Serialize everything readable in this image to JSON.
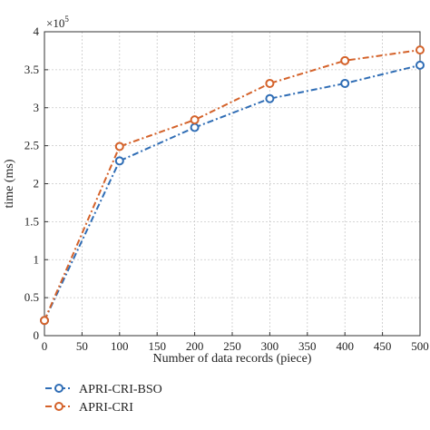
{
  "chart_data": {
    "type": "line",
    "xlabel": "Number of data records (piece)",
    "ylabel": "time (ms)",
    "y_multiplier": {
      "base": "×10",
      "exponent": "5"
    },
    "xlim": [
      0,
      500
    ],
    "ylim": [
      0,
      4
    ],
    "x_ticks": [
      0,
      50,
      100,
      150,
      200,
      250,
      300,
      350,
      400,
      450,
      500
    ],
    "y_ticks": [
      0,
      0.5,
      1,
      1.5,
      2,
      2.5,
      3,
      3.5,
      4
    ],
    "x_tick_labels": [
      "0",
      "50",
      "100",
      "150",
      "200",
      "250",
      "300",
      "350",
      "400",
      "450",
      "500"
    ],
    "y_tick_labels": [
      "0",
      "0.5",
      "1",
      "1.5",
      "2",
      "2.5",
      "3",
      "3.5",
      "4"
    ],
    "grid": true,
    "legend_position": "bottom-left outside",
    "x": [
      0,
      100,
      200,
      300,
      400,
      500
    ],
    "series": [
      {
        "name": "APRI-CRI-BSO",
        "values": [
          0.2,
          2.3,
          2.74,
          3.12,
          3.32,
          3.56
        ],
        "color": "#2f6db5",
        "marker": "circle",
        "line_style": "dash-dot"
      },
      {
        "name": "APRI-CRI",
        "values": [
          0.2,
          2.49,
          2.84,
          3.32,
          3.62,
          3.76
        ],
        "color": "#d4622a",
        "marker": "circle",
        "line_style": "dash-dot"
      }
    ]
  }
}
